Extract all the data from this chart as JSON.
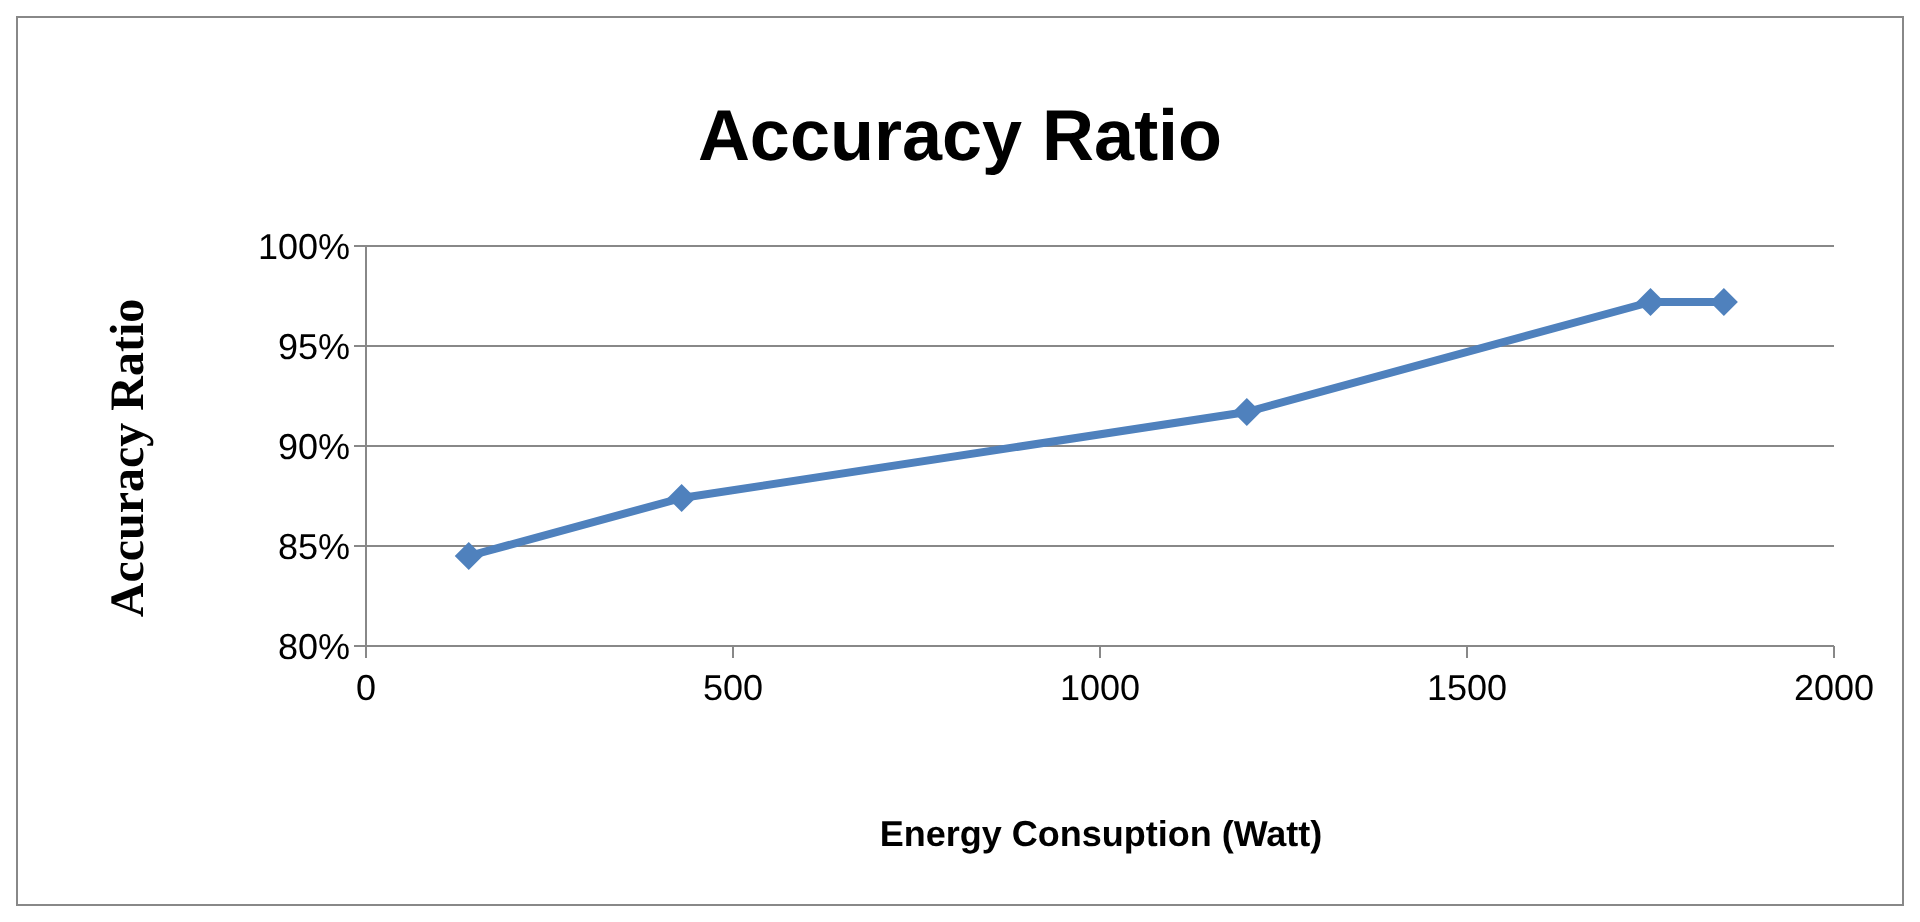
{
  "chart_data": {
    "type": "line",
    "title": "Accuracy Ratio",
    "xlabel": "Energy Consuption (Watt)",
    "ylabel": "Accuracy Ratio",
    "x": [
      140,
      430,
      1200,
      1750,
      1850
    ],
    "series": [
      {
        "color": "#4f81bd",
        "values": [
          84.5,
          87.4,
          91.7,
          97.2,
          97.2
        ]
      }
    ],
    "xlim": [
      0,
      2000
    ],
    "xticks": [
      0,
      500,
      1000,
      1500,
      2000
    ],
    "ylim": [
      80,
      100
    ],
    "yticks": [
      {
        "value": 80,
        "label": "80%"
      },
      {
        "value": 85,
        "label": "85%"
      },
      {
        "value": 90,
        "label": "90%"
      },
      {
        "value": 95,
        "label": "95%"
      },
      {
        "value": 100,
        "label": "100%"
      }
    ],
    "grid": "y",
    "marker": "diamond",
    "line_style": "solid"
  }
}
